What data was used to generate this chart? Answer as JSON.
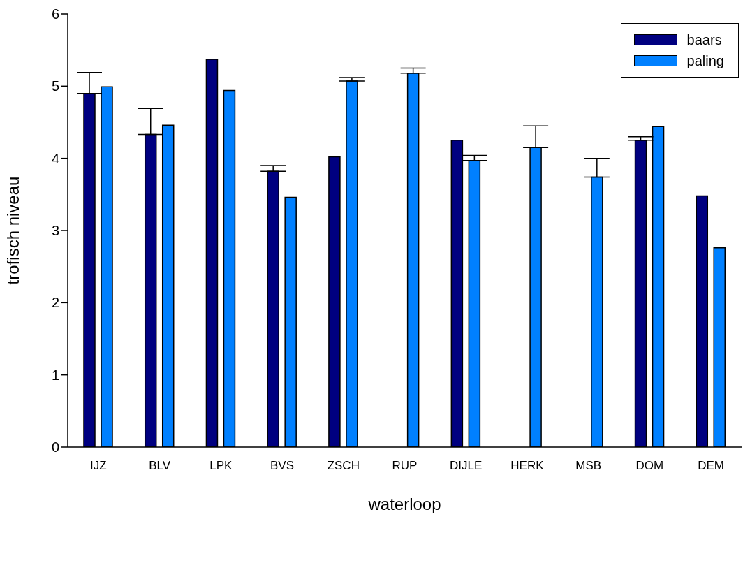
{
  "chart_data": {
    "type": "bar",
    "xlabel": "waterloop",
    "ylabel": "trofisch niveau",
    "categories": [
      "IJZ",
      "BLV",
      "LPK",
      "BVS",
      "ZSCH",
      "RUP",
      "DIJLE",
      "HERK",
      "MSB",
      "DOM",
      "DEM"
    ],
    "series": [
      {
        "name": "baars",
        "color": "#000080",
        "values": [
          4.9,
          4.33,
          5.37,
          3.82,
          4.02,
          null,
          4.25,
          null,
          null,
          4.25,
          3.48
        ],
        "errors": [
          [
            4.9,
            5.19
          ],
          [
            4.33,
            4.69
          ],
          null,
          [
            3.82,
            3.9
          ],
          null,
          null,
          null,
          null,
          null,
          [
            4.25,
            4.3
          ],
          null
        ]
      },
      {
        "name": "paling",
        "color": "#0080ff",
        "values": [
          4.99,
          4.46,
          4.94,
          3.46,
          5.07,
          5.18,
          3.97,
          4.15,
          3.74,
          4.44,
          2.76
        ],
        "errors": [
          null,
          null,
          null,
          null,
          [
            5.07,
            5.12
          ],
          [
            5.18,
            5.25
          ],
          [
            3.97,
            4.04
          ],
          [
            4.15,
            4.45
          ],
          [
            3.74,
            4.0
          ],
          null,
          null
        ]
      }
    ],
    "ylim": [
      0,
      6
    ],
    "yticks": [
      0,
      1,
      2,
      3,
      4,
      5,
      6
    ],
    "grid": false,
    "legend": "top right"
  }
}
